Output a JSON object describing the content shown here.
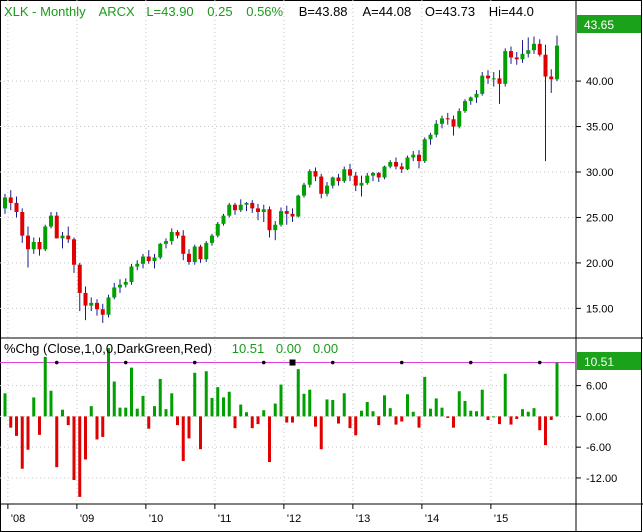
{
  "header": {
    "symbol": "XLK - Monthly",
    "exchange": "ARCX",
    "last": "L=43.90",
    "change": "0.25",
    "change_pct": "0.56%",
    "bid": "B=43.88",
    "ask": "A=44.08",
    "open": "O=43.73",
    "high": "Hi=44.0"
  },
  "price_badge": "43.65",
  "indicator": {
    "label": "%Chg (Close,1,0,0,DarkGreen,Red)",
    "v1": "10.51",
    "v2": "0.00",
    "v3": "0.00",
    "badge": "10.51"
  },
  "colors": {
    "up": "#00a000",
    "down": "#e00000",
    "wick": "#1a1a8c",
    "header_green": "#1a9a1a",
    "header_black": "#000000",
    "magenta_line": "#e040e0",
    "badge_green": "#1aa31a"
  },
  "chart_data": [
    {
      "type": "candlestick",
      "title": "XLK - Monthly",
      "y_ticks": [
        "15.00",
        "20.00",
        "25.00",
        "30.00",
        "35.00",
        "40.00"
      ],
      "ylim": [
        12.4,
        46.5
      ],
      "x_ticks": [
        "'08",
        "'09",
        "'10",
        "'11",
        "'12",
        "'13",
        "'14",
        "'15"
      ],
      "x_tick_months": [
        1,
        13,
        25,
        37,
        49,
        61,
        73,
        85
      ],
      "start": "2007-09",
      "candles_note": "[open, high, low, close] per month starting Sep 2007",
      "candles": [
        [
          26.0,
          27.6,
          25.4,
          27.2
        ],
        [
          27.2,
          28.0,
          25.8,
          26.6
        ],
        [
          26.6,
          27.3,
          25.0,
          25.6
        ],
        [
          25.6,
          26.0,
          22.2,
          23.0
        ],
        [
          23.0,
          24.0,
          19.5,
          21.5
        ],
        [
          21.5,
          22.8,
          21.0,
          22.3
        ],
        [
          22.3,
          22.8,
          20.8,
          21.5
        ],
        [
          21.5,
          24.2,
          21.3,
          24.0
        ],
        [
          24.0,
          25.6,
          23.8,
          25.2
        ],
        [
          25.2,
          25.6,
          22.7,
          22.7
        ],
        [
          22.7,
          23.4,
          21.6,
          23.0
        ],
        [
          23.0,
          24.0,
          22.2,
          22.6
        ],
        [
          22.6,
          22.8,
          18.9,
          19.8
        ],
        [
          19.8,
          20.0,
          14.7,
          16.7
        ],
        [
          16.7,
          17.4,
          13.7,
          15.3
        ],
        [
          15.3,
          16.2,
          14.7,
          15.6
        ],
        [
          15.6,
          16.0,
          14.2,
          14.9
        ],
        [
          14.9,
          15.5,
          13.4,
          14.3
        ],
        [
          14.3,
          16.5,
          14.0,
          16.2
        ],
        [
          16.2,
          17.8,
          16.0,
          17.3
        ],
        [
          17.3,
          18.2,
          16.7,
          17.6
        ],
        [
          17.6,
          18.3,
          17.3,
          17.9
        ],
        [
          17.9,
          19.9,
          17.6,
          19.6
        ],
        [
          19.6,
          20.3,
          19.2,
          19.9
        ],
        [
          19.9,
          21.0,
          19.4,
          20.7
        ],
        [
          20.7,
          21.4,
          19.9,
          20.2
        ],
        [
          20.2,
          21.0,
          19.4,
          20.6
        ],
        [
          20.6,
          22.2,
          20.4,
          22.1
        ],
        [
          22.1,
          22.7,
          21.6,
          22.4
        ],
        [
          22.4,
          23.8,
          22.0,
          23.4
        ],
        [
          23.4,
          23.6,
          22.7,
          23.0
        ],
        [
          23.0,
          23.6,
          20.3,
          21.0
        ],
        [
          21.0,
          21.5,
          19.8,
          20.1
        ],
        [
          20.1,
          22.0,
          19.8,
          21.8
        ],
        [
          21.8,
          22.0,
          20.0,
          20.4
        ],
        [
          20.4,
          22.4,
          20.1,
          22.2
        ],
        [
          22.2,
          23.2,
          21.9,
          23.0
        ],
        [
          23.0,
          24.5,
          22.8,
          24.3
        ],
        [
          24.3,
          25.4,
          24.1,
          25.2
        ],
        [
          25.2,
          26.6,
          25.0,
          26.4
        ],
        [
          26.4,
          26.6,
          25.3,
          25.8
        ],
        [
          25.8,
          27.0,
          25.6,
          26.4
        ],
        [
          26.4,
          26.7,
          25.7,
          26.6
        ],
        [
          26.6,
          26.9,
          25.5,
          26.0
        ],
        [
          26.0,
          26.5,
          24.7,
          25.6
        ],
        [
          25.6,
          26.4,
          24.5,
          25.9
        ],
        [
          25.9,
          26.2,
          22.8,
          23.6
        ],
        [
          23.6,
          24.6,
          22.5,
          24.2
        ],
        [
          24.2,
          26.1,
          24.0,
          25.7
        ],
        [
          25.7,
          26.3,
          24.2,
          25.4
        ],
        [
          25.4,
          26.0,
          24.5,
          25.1
        ],
        [
          25.1,
          27.5,
          25.0,
          27.4
        ],
        [
          27.4,
          28.8,
          27.2,
          28.6
        ],
        [
          28.6,
          30.3,
          28.3,
          30.1
        ],
        [
          30.1,
          30.5,
          29.0,
          29.5
        ],
        [
          29.5,
          29.8,
          27.1,
          27.6
        ],
        [
          27.6,
          28.9,
          27.3,
          28.5
        ],
        [
          28.5,
          29.5,
          28.2,
          29.4
        ],
        [
          29.4,
          29.8,
          28.5,
          29.0
        ],
        [
          29.0,
          30.6,
          28.8,
          30.3
        ],
        [
          30.3,
          30.9,
          29.0,
          29.6
        ],
        [
          29.6,
          30.0,
          27.9,
          28.5
        ],
        [
          28.5,
          29.6,
          27.3,
          28.8
        ],
        [
          28.8,
          29.9,
          28.6,
          29.6
        ],
        [
          29.6,
          30.0,
          29.0,
          29.9
        ],
        [
          29.9,
          30.0,
          28.9,
          29.4
        ],
        [
          29.4,
          30.7,
          29.2,
          30.6
        ],
        [
          30.6,
          31.3,
          30.4,
          31.1
        ],
        [
          31.1,
          31.6,
          30.3,
          30.6
        ],
        [
          30.6,
          31.0,
          29.9,
          30.3
        ],
        [
          30.3,
          31.8,
          30.2,
          31.6
        ],
        [
          31.6,
          32.3,
          31.2,
          31.9
        ],
        [
          31.9,
          32.4,
          30.4,
          31.2
        ],
        [
          31.2,
          33.8,
          31.0,
          33.6
        ],
        [
          33.6,
          34.3,
          33.0,
          34.1
        ],
        [
          34.1,
          35.7,
          33.8,
          35.3
        ],
        [
          35.3,
          36.2,
          34.8,
          35.9
        ],
        [
          35.9,
          36.5,
          35.2,
          35.8
        ],
        [
          35.8,
          36.2,
          34.0,
          35.0
        ],
        [
          35.0,
          37.0,
          34.8,
          36.7
        ],
        [
          36.7,
          38.0,
          36.5,
          37.8
        ],
        [
          37.8,
          38.3,
          37.4,
          38.2
        ],
        [
          38.2,
          39.0,
          37.6,
          38.6
        ],
        [
          38.6,
          41.0,
          38.4,
          40.6
        ],
        [
          40.6,
          41.2,
          39.7,
          40.3
        ],
        [
          40.3,
          41.0,
          39.4,
          40.3
        ],
        [
          40.3,
          41.2,
          37.5,
          39.7
        ],
        [
          39.7,
          43.6,
          39.4,
          43.3
        ],
        [
          43.3,
          43.8,
          41.9,
          42.6
        ],
        [
          42.6,
          43.2,
          41.8,
          42.4
        ],
        [
          42.4,
          44.5,
          42.0,
          43.0
        ],
        [
          43.0,
          44.8,
          42.6,
          43.4
        ],
        [
          43.4,
          44.9,
          43.0,
          44.1
        ],
        [
          44.1,
          44.6,
          42.7,
          42.9
        ],
        [
          42.9,
          44.0,
          31.2,
          40.5
        ],
        [
          40.5,
          41.3,
          38.7,
          40.2
        ],
        [
          40.2,
          45.0,
          40.0,
          43.9
        ]
      ]
    },
    {
      "type": "bar",
      "title": "%Chg (Close,1,0,0,DarkGreen,Red)",
      "y_ticks": [
        "-12.00",
        "-6.00",
        "0.00",
        "6.00"
      ],
      "ylim": [
        -16.3,
        10.6
      ],
      "value_note": "monthly percent change of close, same months as candles",
      "values": [
        4.5,
        -2.2,
        -3.8,
        -10.2,
        -6.5,
        3.7,
        -3.6,
        11.6,
        5.0,
        -9.9,
        1.3,
        -1.7,
        -12.4,
        -15.7,
        -8.4,
        2.0,
        -4.5,
        -4.0,
        13.3,
        6.8,
        1.7,
        1.7,
        9.5,
        1.5,
        4.0,
        -2.4,
        2.0,
        7.3,
        1.4,
        4.5,
        -1.7,
        -8.7,
        -4.3,
        8.5,
        -6.4,
        8.8,
        3.6,
        5.7,
        3.7,
        4.8,
        -2.3,
        2.3,
        0.8,
        -2.3,
        -1.5,
        1.2,
        -8.9,
        2.5,
        6.2,
        -1.2,
        -1.2,
        9.2,
        4.4,
        5.2,
        -2.0,
        -6.4,
        3.3,
        3.2,
        -1.4,
        4.5,
        -2.3,
        -3.7,
        1.1,
        2.8,
        1.0,
        -1.7,
        4.1,
        1.6,
        -1.6,
        -1.0,
        4.3,
        0.9,
        -2.2,
        7.7,
        1.5,
        3.5,
        1.7,
        -0.3,
        -2.2,
        4.9,
        3.0,
        1.1,
        1.0,
        5.2,
        -0.7,
        0.0,
        -1.5,
        8.3,
        -1.6,
        -0.5,
        1.4,
        0.9,
        1.6,
        -2.7,
        -5.6,
        -0.7,
        10.5
      ]
    }
  ]
}
